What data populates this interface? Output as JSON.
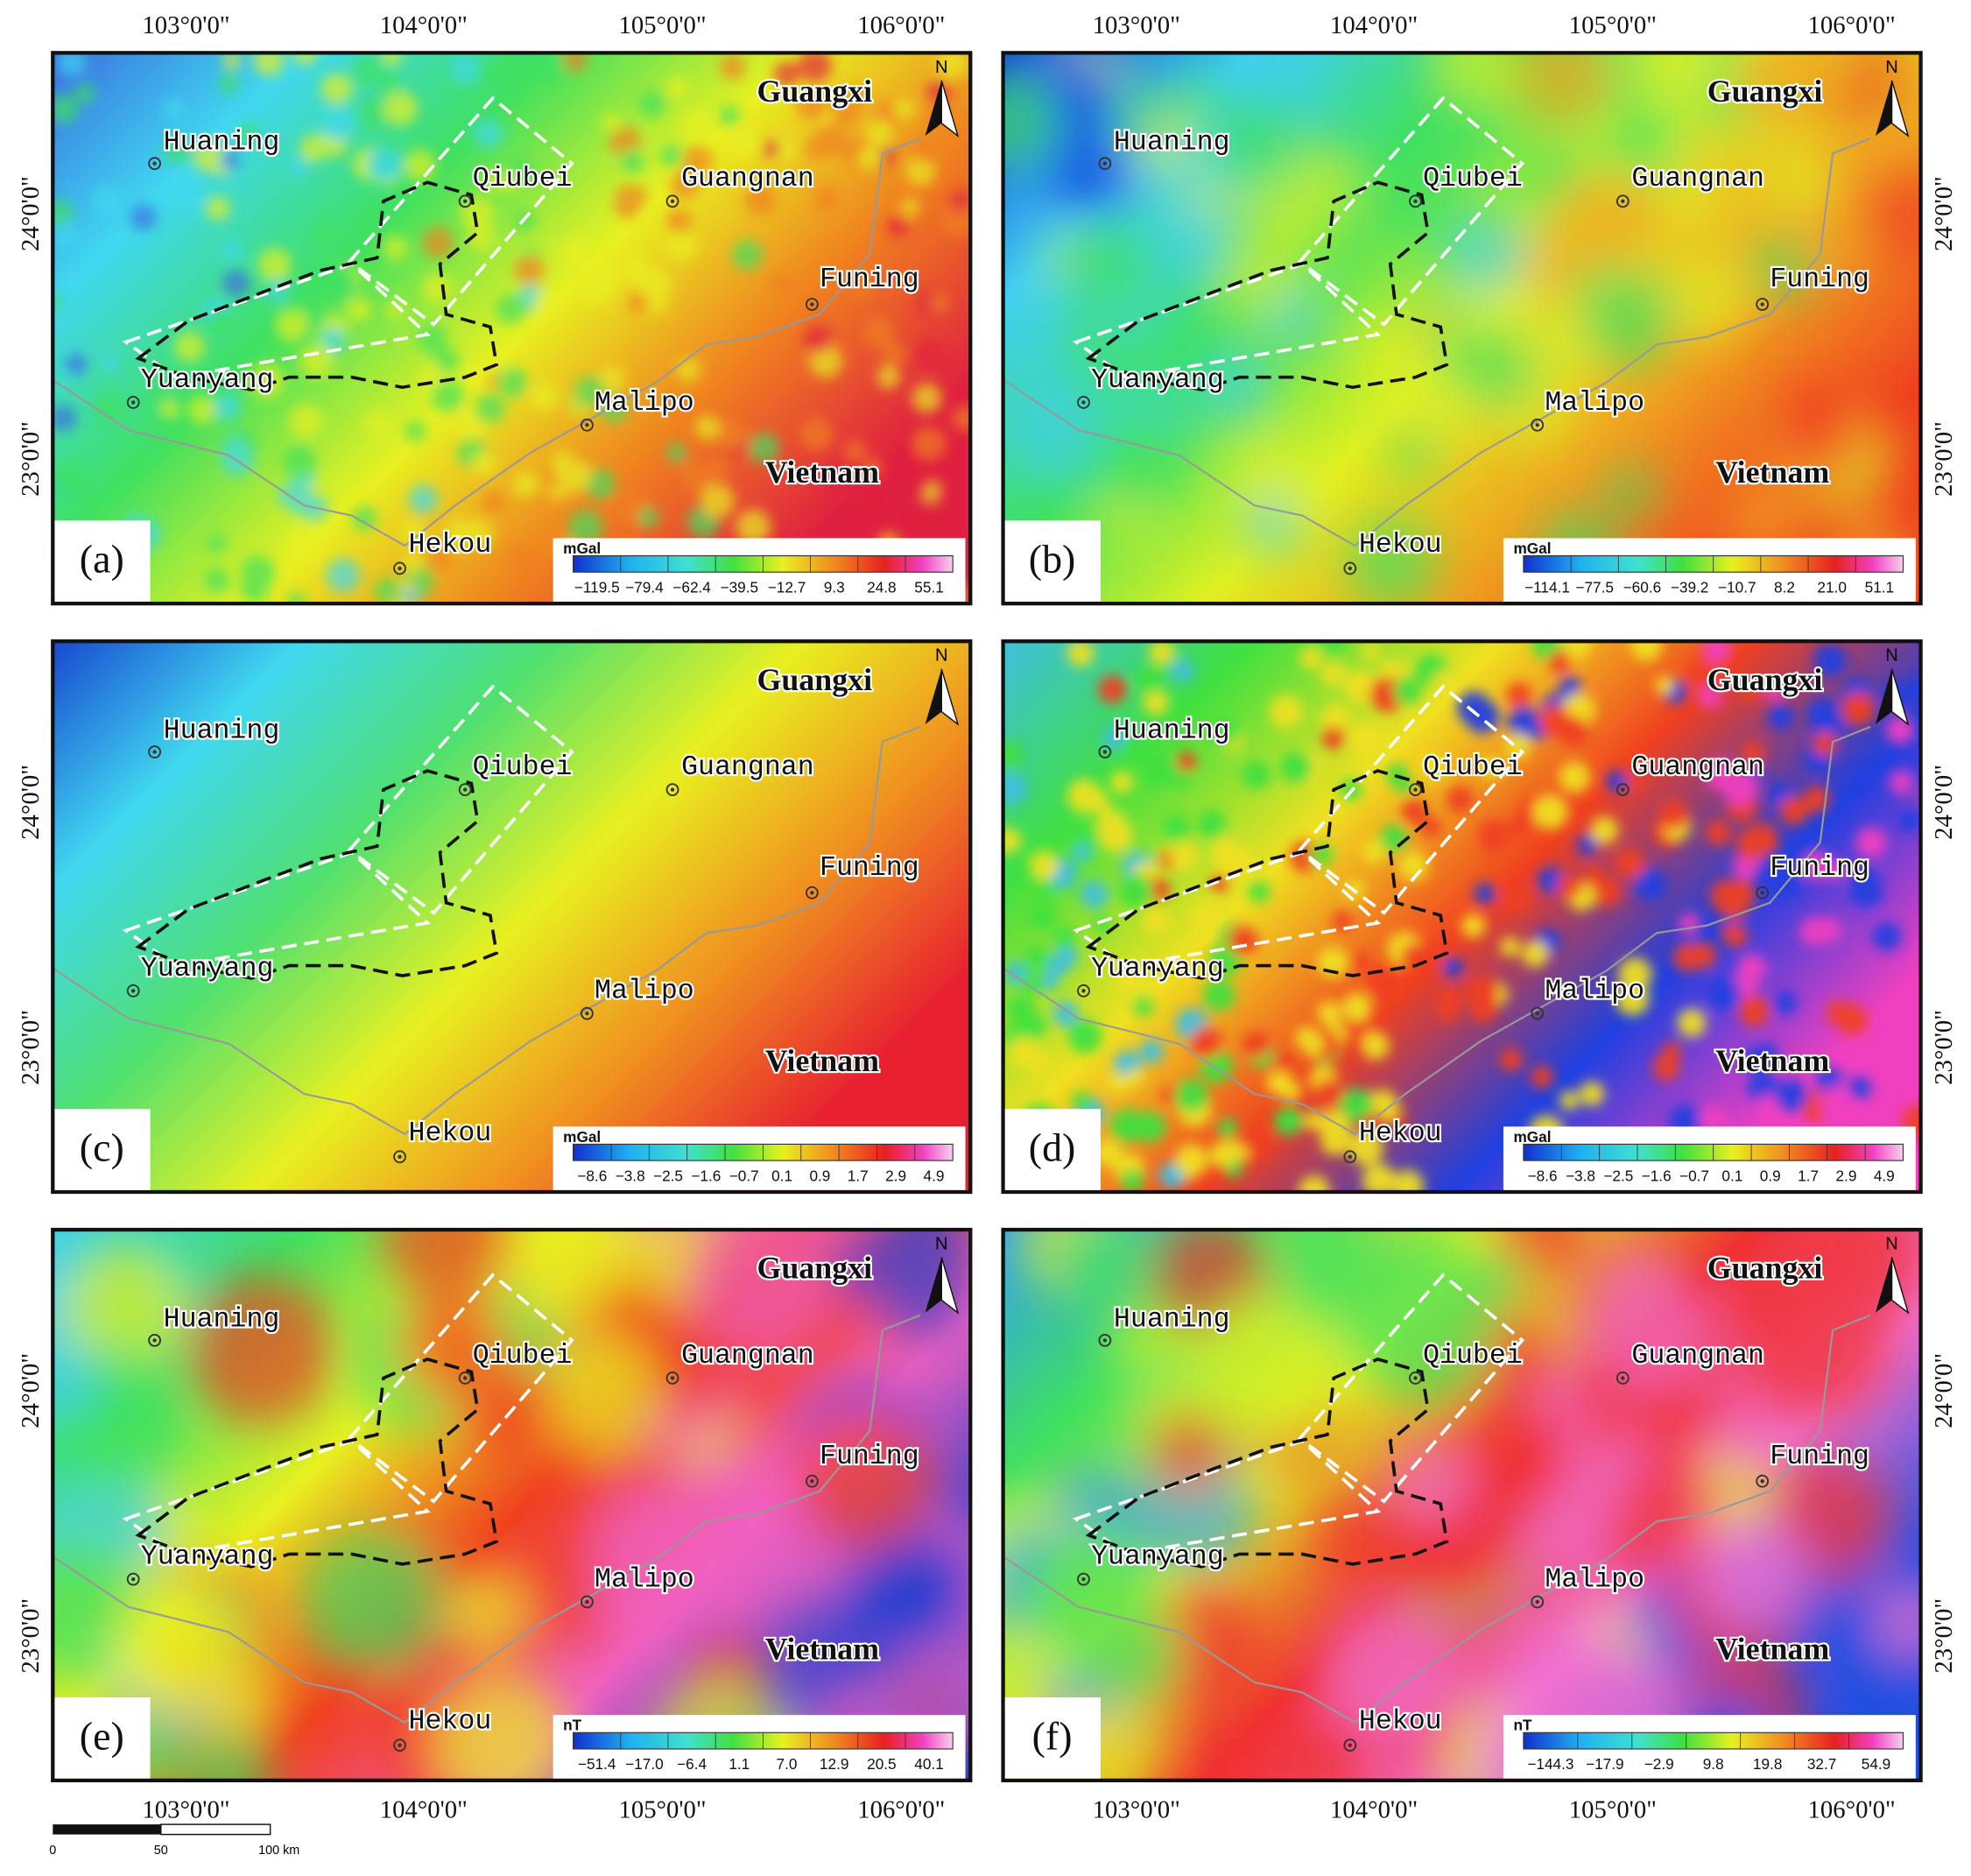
{
  "coordinates": {
    "lon": [
      "103°0'0\"",
      "104°0'0\"",
      "105°0'0\"",
      "106°0'0\""
    ],
    "lat": [
      "24°0'0\"",
      "23°0'0\""
    ]
  },
  "places": [
    "Huaning",
    "Qiubei",
    "Guangnan",
    "Funing",
    "Yuanyang",
    "Malipo",
    "Hekou"
  ],
  "regions": [
    "Guangxi",
    "Vietnam"
  ],
  "north": "N",
  "panels": [
    {
      "label": "(a)",
      "unit": "mGal",
      "legend": [
        "−119.5",
        "−79.4",
        "−62.4",
        "−39.5",
        "−12.7",
        "9.3",
        "24.8",
        "55.1"
      ]
    },
    {
      "label": "(b)",
      "unit": "mGal",
      "legend": [
        "−114.1",
        "−77.5",
        "−60.6",
        "−39.2",
        "−10.7",
        "8.2",
        "21.0",
        "51.1"
      ]
    },
    {
      "label": "(c)",
      "unit": "mGal",
      "legend": [
        "−8.6",
        "−3.8",
        "−2.5",
        "−1.6",
        "−0.7",
        "0.1",
        "0.9",
        "1.7",
        "2.9",
        "4.9"
      ]
    },
    {
      "label": "(d)",
      "unit": "mGal",
      "legend": [
        "−8.6",
        "−3.8",
        "−2.5",
        "−1.6",
        "−0.7",
        "0.1",
        "0.9",
        "1.7",
        "2.9",
        "4.9"
      ]
    },
    {
      "label": "(e)",
      "unit": "nT",
      "legend": [
        "−51.4",
        "−17.0",
        "−6.4",
        "1.1",
        "7.0",
        "12.9",
        "20.5",
        "40.1"
      ]
    },
    {
      "label": "(f)",
      "unit": "nT",
      "legend": [
        "−144.3",
        "−17.9",
        "−2.9",
        "9.8",
        "19.8",
        "32.7",
        "54.9"
      ]
    }
  ],
  "scale_bar": [
    "0",
    "50",
    "100 km"
  ]
}
